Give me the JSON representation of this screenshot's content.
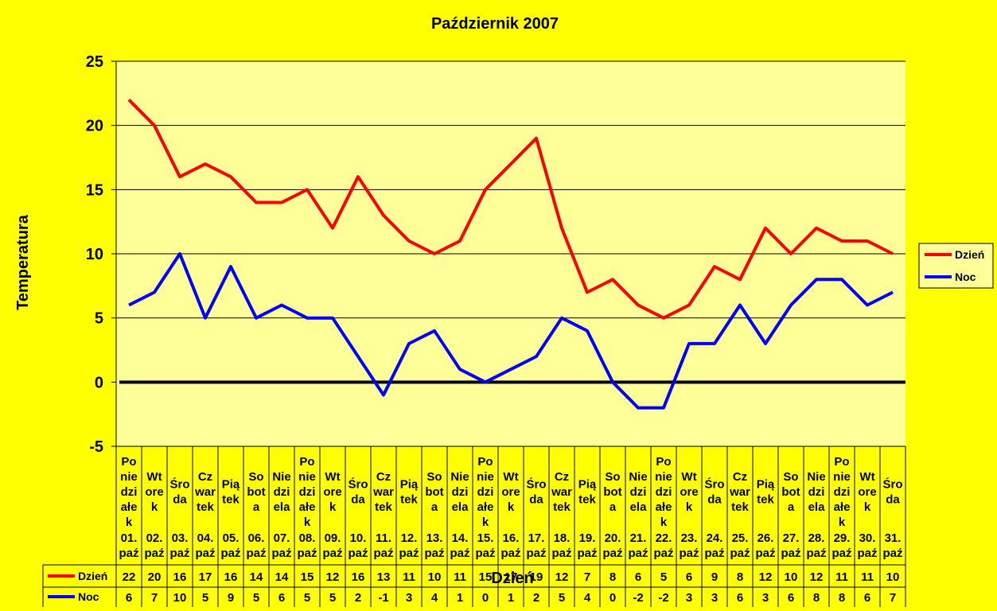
{
  "chart_data": {
    "type": "line",
    "title": "Październik 2007",
    "xlabel": "Dzień",
    "ylabel": "Temperatura",
    "ylim": [
      -5,
      25
    ],
    "yticks": [
      -5,
      0,
      5,
      10,
      15,
      20,
      25
    ],
    "grid": true,
    "legend_position": "right",
    "plot_background": "#FFFF99",
    "page_background": "#FFFF00",
    "categories": [
      {
        "day": [
          "Po",
          "nie",
          "dzi",
          "ałe",
          "k"
        ],
        "date": [
          "01.",
          "paź"
        ]
      },
      {
        "day": [
          "Wt",
          "ore",
          "k"
        ],
        "date": [
          "02.",
          "paź"
        ]
      },
      {
        "day": [
          "Śro",
          "da"
        ],
        "date": [
          "03.",
          "paź"
        ]
      },
      {
        "day": [
          "Cz",
          "war",
          "tek"
        ],
        "date": [
          "04.",
          "paź"
        ]
      },
      {
        "day": [
          "Pią",
          "tek"
        ],
        "date": [
          "05.",
          "paź"
        ]
      },
      {
        "day": [
          "So",
          "bot",
          "a"
        ],
        "date": [
          "06.",
          "paź"
        ]
      },
      {
        "day": [
          "Nie",
          "dzi",
          "ela"
        ],
        "date": [
          "07.",
          "paź"
        ]
      },
      {
        "day": [
          "Po",
          "nie",
          "dzi",
          "ałe",
          "k"
        ],
        "date": [
          "08.",
          "paź"
        ]
      },
      {
        "day": [
          "Wt",
          "ore",
          "k"
        ],
        "date": [
          "09.",
          "paź"
        ]
      },
      {
        "day": [
          "Śro",
          "da"
        ],
        "date": [
          "10.",
          "paź"
        ]
      },
      {
        "day": [
          "Cz",
          "war",
          "tek"
        ],
        "date": [
          "11.",
          "paź"
        ]
      },
      {
        "day": [
          "Pią",
          "tek"
        ],
        "date": [
          "12.",
          "paź"
        ]
      },
      {
        "day": [
          "So",
          "bot",
          "a"
        ],
        "date": [
          "13.",
          "paź"
        ]
      },
      {
        "day": [
          "Nie",
          "dzi",
          "ela"
        ],
        "date": [
          "14.",
          "paź"
        ]
      },
      {
        "day": [
          "Po",
          "nie",
          "dzi",
          "ałe",
          "k"
        ],
        "date": [
          "15.",
          "paź"
        ]
      },
      {
        "day": [
          "Wt",
          "ore",
          "k"
        ],
        "date": [
          "16.",
          "paź"
        ]
      },
      {
        "day": [
          "Śro",
          "da"
        ],
        "date": [
          "17.",
          "paź"
        ]
      },
      {
        "day": [
          "Cz",
          "war",
          "tek"
        ],
        "date": [
          "18.",
          "paź"
        ]
      },
      {
        "day": [
          "Pią",
          "tek"
        ],
        "date": [
          "19.",
          "paź"
        ]
      },
      {
        "day": [
          "So",
          "bot",
          "a"
        ],
        "date": [
          "20.",
          "paź"
        ]
      },
      {
        "day": [
          "Nie",
          "dzi",
          "ela"
        ],
        "date": [
          "21.",
          "paź"
        ]
      },
      {
        "day": [
          "Po",
          "nie",
          "dzi",
          "ałe",
          "k"
        ],
        "date": [
          "22.",
          "paź"
        ]
      },
      {
        "day": [
          "Wt",
          "ore",
          "k"
        ],
        "date": [
          "23.",
          "paź"
        ]
      },
      {
        "day": [
          "Śro",
          "da"
        ],
        "date": [
          "24.",
          "paź"
        ]
      },
      {
        "day": [
          "Cz",
          "war",
          "tek"
        ],
        "date": [
          "25.",
          "paź"
        ]
      },
      {
        "day": [
          "Pią",
          "tek"
        ],
        "date": [
          "26.",
          "paź"
        ]
      },
      {
        "day": [
          "So",
          "bot",
          "a"
        ],
        "date": [
          "27.",
          "paź"
        ]
      },
      {
        "day": [
          "Nie",
          "dzi",
          "ela"
        ],
        "date": [
          "28.",
          "paź"
        ]
      },
      {
        "day": [
          "Po",
          "nie",
          "dzi",
          "ałe",
          "k"
        ],
        "date": [
          "29.",
          "paź"
        ]
      },
      {
        "day": [
          "Wt",
          "ore",
          "k"
        ],
        "date": [
          "30.",
          "paź"
        ]
      },
      {
        "day": [
          "Śro",
          "da"
        ],
        "date": [
          "31.",
          "paź"
        ]
      }
    ],
    "series": [
      {
        "name": "Dzień",
        "color": "#FF0000",
        "values": [
          22,
          20,
          16,
          17,
          16,
          14,
          14,
          15,
          12,
          16,
          13,
          11,
          10,
          11,
          15,
          17,
          19,
          12,
          7,
          8,
          6,
          5,
          6,
          9,
          8,
          12,
          10,
          12,
          11,
          11,
          10
        ]
      },
      {
        "name": "Noc",
        "color": "#0000FF",
        "values": [
          6,
          7,
          10,
          5,
          9,
          5,
          6,
          5,
          5,
          2,
          -1,
          3,
          4,
          1,
          0,
          1,
          2,
          5,
          4,
          0,
          -2,
          -2,
          3,
          3,
          6,
          3,
          6,
          8,
          8,
          6,
          7
        ]
      }
    ]
  }
}
